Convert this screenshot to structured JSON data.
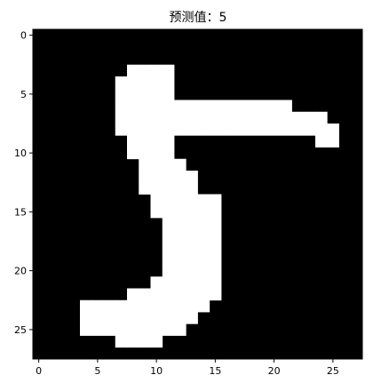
{
  "chart_data": {
    "type": "heatmap",
    "title": "预测值：5",
    "xlabel": "",
    "ylabel": "",
    "xlim": [
      -0.5,
      27.5
    ],
    "ylim": [
      27.5,
      -0.5
    ],
    "x_ticks": [
      0,
      5,
      10,
      15,
      20,
      25
    ],
    "y_ticks": [
      0,
      5,
      10,
      15,
      20,
      25
    ],
    "colormap": "gray",
    "colors": {
      "on": "#ffffff",
      "off": "#000000",
      "axis": "#000000"
    },
    "grid": false,
    "rows": [
      "0000000000000000000000000000",
      "0000000000000000000000000000",
      "0000000000000000000000000000",
      "0000000011110000000000000000",
      "0000000111110000000000000000",
      "0000000111110000000000000000",
      "0000000111111111111111000000",
      "0000000111111111111111111000",
      "0000000111111111111111111100",
      "0000000011110000000000001100",
      "0000000011110000000000000000",
      "0000000001111000000000000000",
      "0000000001111100000000000000",
      "0000000001111100000000000000",
      "0000000000111111000000000000",
      "0000000000111111000000000000",
      "0000000000011111000000000000",
      "0000000000011111000000000000",
      "0000000000011111000000000000",
      "0000000000011111000000000000",
      "0000000000011111000000000000",
      "0000000000111111000000000000",
      "0000000011111111000000000000",
      "0000111111111110000000000000",
      "0000111111111100000000000000",
      "0000111111111000000000000000",
      "0000000111100000000000000000",
      "0000000000000000000000000000"
    ]
  }
}
